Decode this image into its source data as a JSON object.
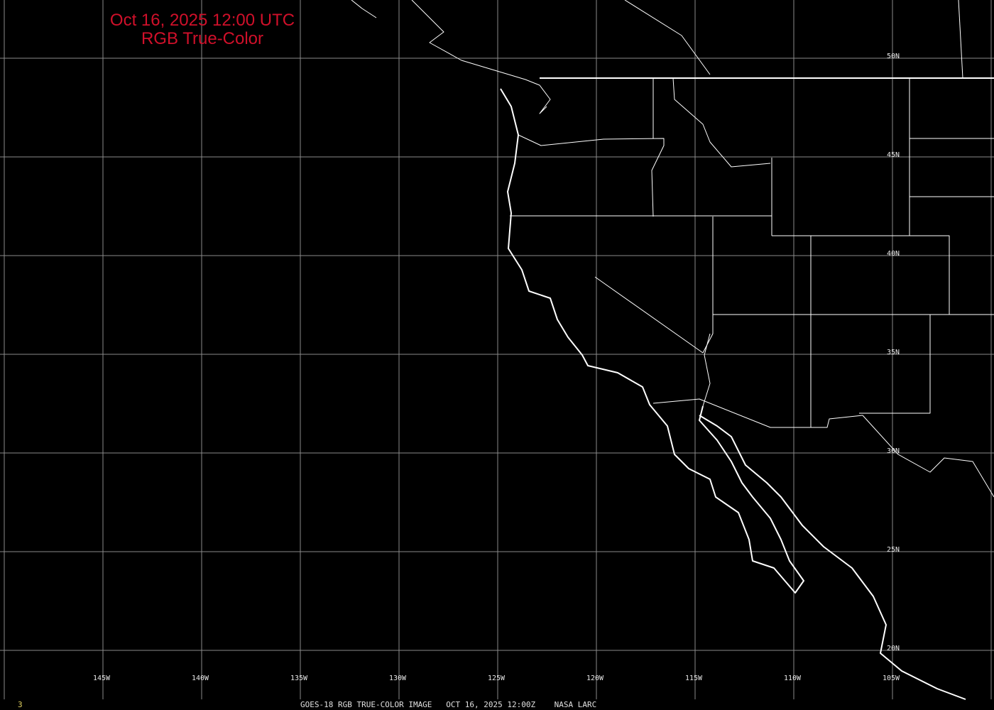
{
  "title": {
    "line1": "Oct 16, 2025 12:00 UTC",
    "line2": "RGB True-Color"
  },
  "longitude_labels": [
    "145W",
    "140W",
    "135W",
    "130W",
    "125W",
    "120W",
    "115W",
    "110W",
    "105W"
  ],
  "latitude_labels": [
    "50N",
    "45N",
    "40N",
    "35N",
    "30N",
    "25N",
    "20N"
  ],
  "footer": {
    "frame_number": "3",
    "caption": "GOES-18 RGB TRUE-COLOR IMAGE   OCT 16, 2025 12:00Z    NASA LARC"
  },
  "colors": {
    "background": "#000000",
    "title": "#d0102a",
    "grid": "#8a8a8a",
    "coastline": "#ffffff",
    "frame_number": "#e0d060"
  }
}
